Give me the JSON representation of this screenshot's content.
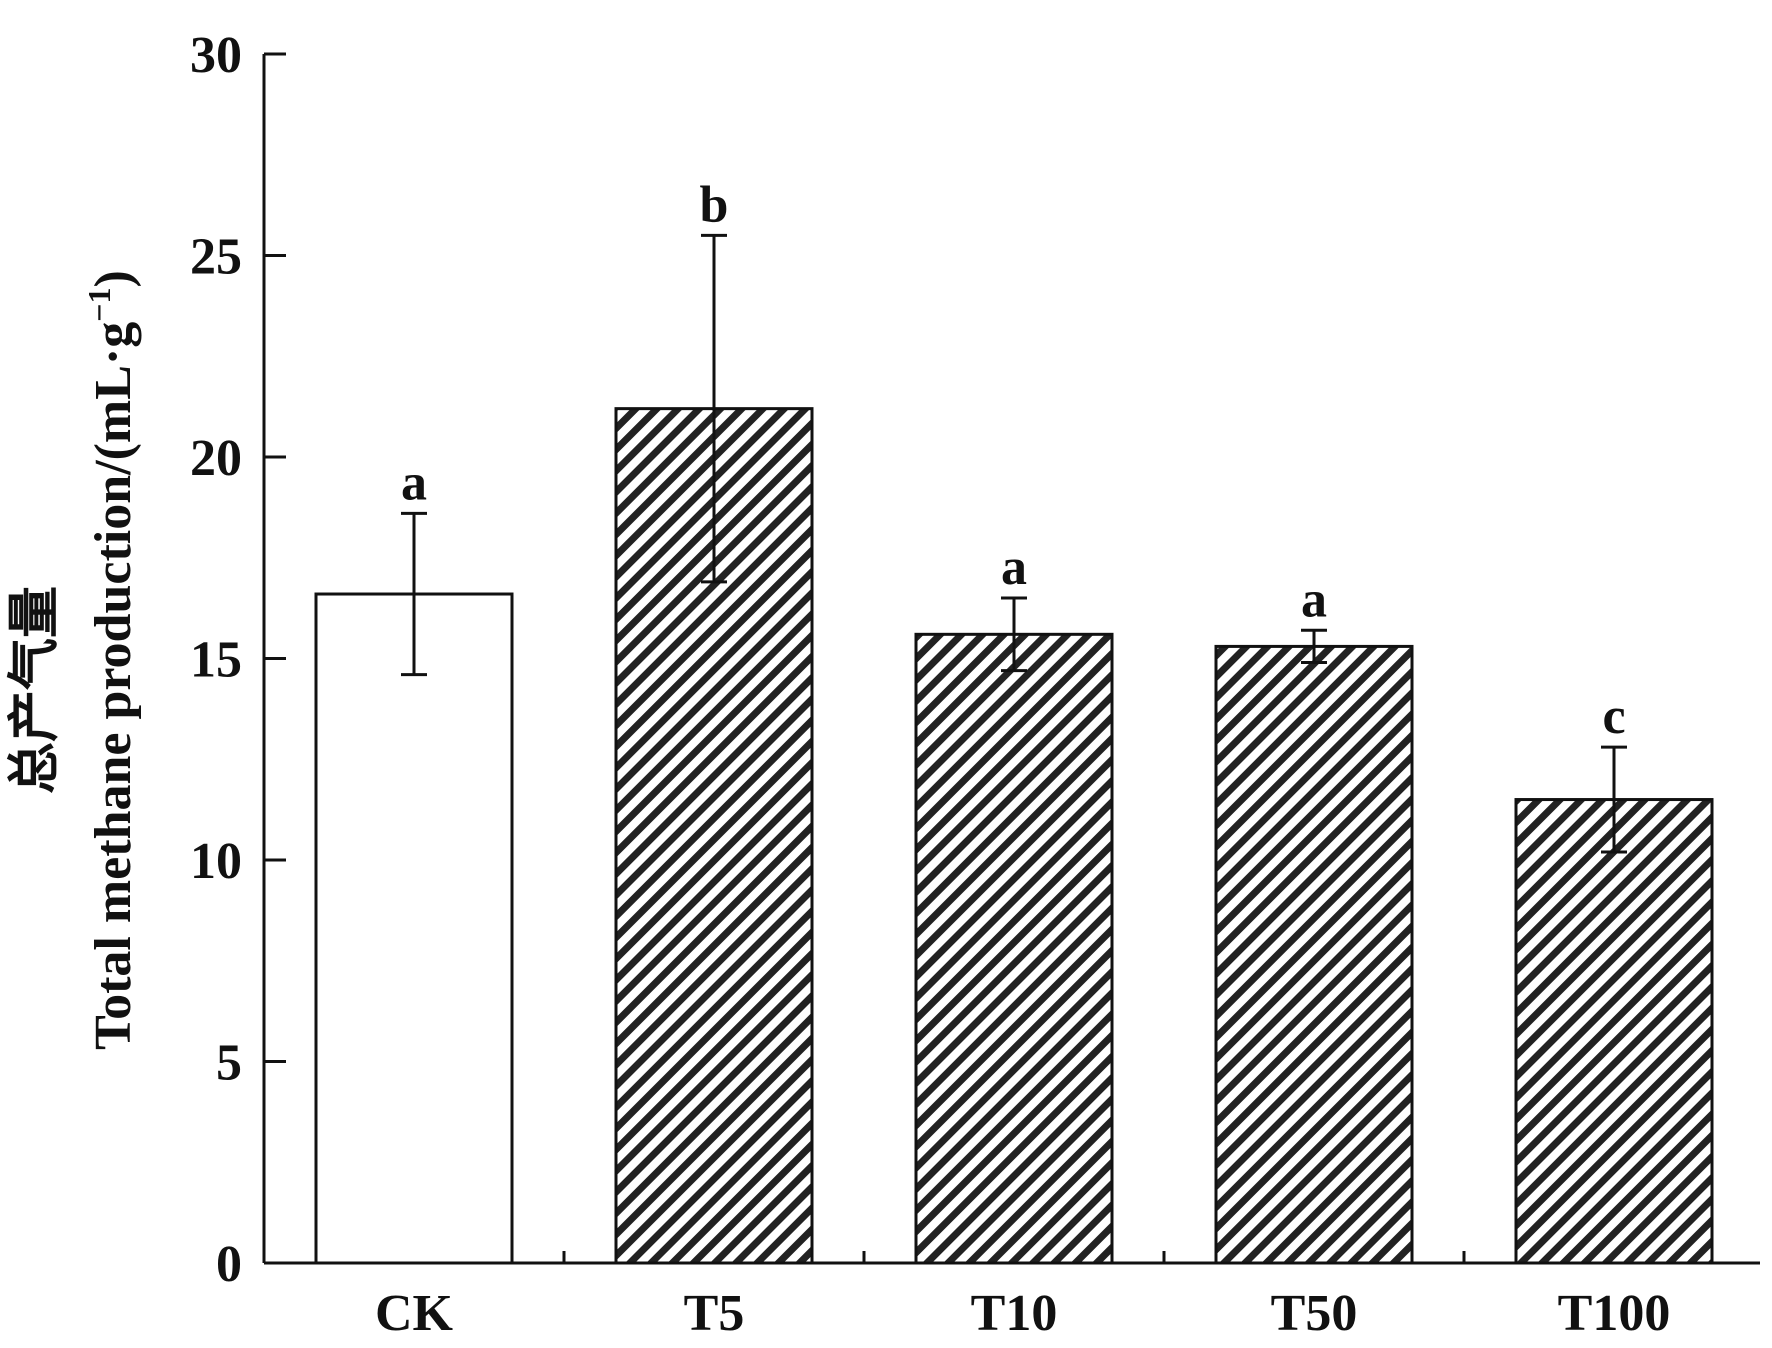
{
  "chart_data": {
    "type": "bar",
    "categories": [
      "CK",
      "T5",
      "T10",
      "T50",
      "T100"
    ],
    "values": [
      16.6,
      21.2,
      15.6,
      15.3,
      11.5
    ],
    "error": [
      2.0,
      4.3,
      0.9,
      0.4,
      1.3
    ],
    "significance": [
      "a",
      "b",
      "a",
      "a",
      "c"
    ],
    "fill": [
      "plain",
      "hatched",
      "hatched",
      "hatched",
      "hatched"
    ],
    "ylim": [
      0,
      30
    ],
    "yticks": [
      0,
      5,
      10,
      15,
      20,
      25,
      30
    ],
    "ylabel_cn": "总产气量",
    "ylabel": "Total methane production/(mL·g",
    "ylabel_sup": "−1",
    "ylabel_close": ")",
    "xlabel": "",
    "title": "",
    "grid": false,
    "colors": {
      "axis": "#111111",
      "bar_fill": "#ffffff",
      "hatch": "#222222"
    }
  }
}
